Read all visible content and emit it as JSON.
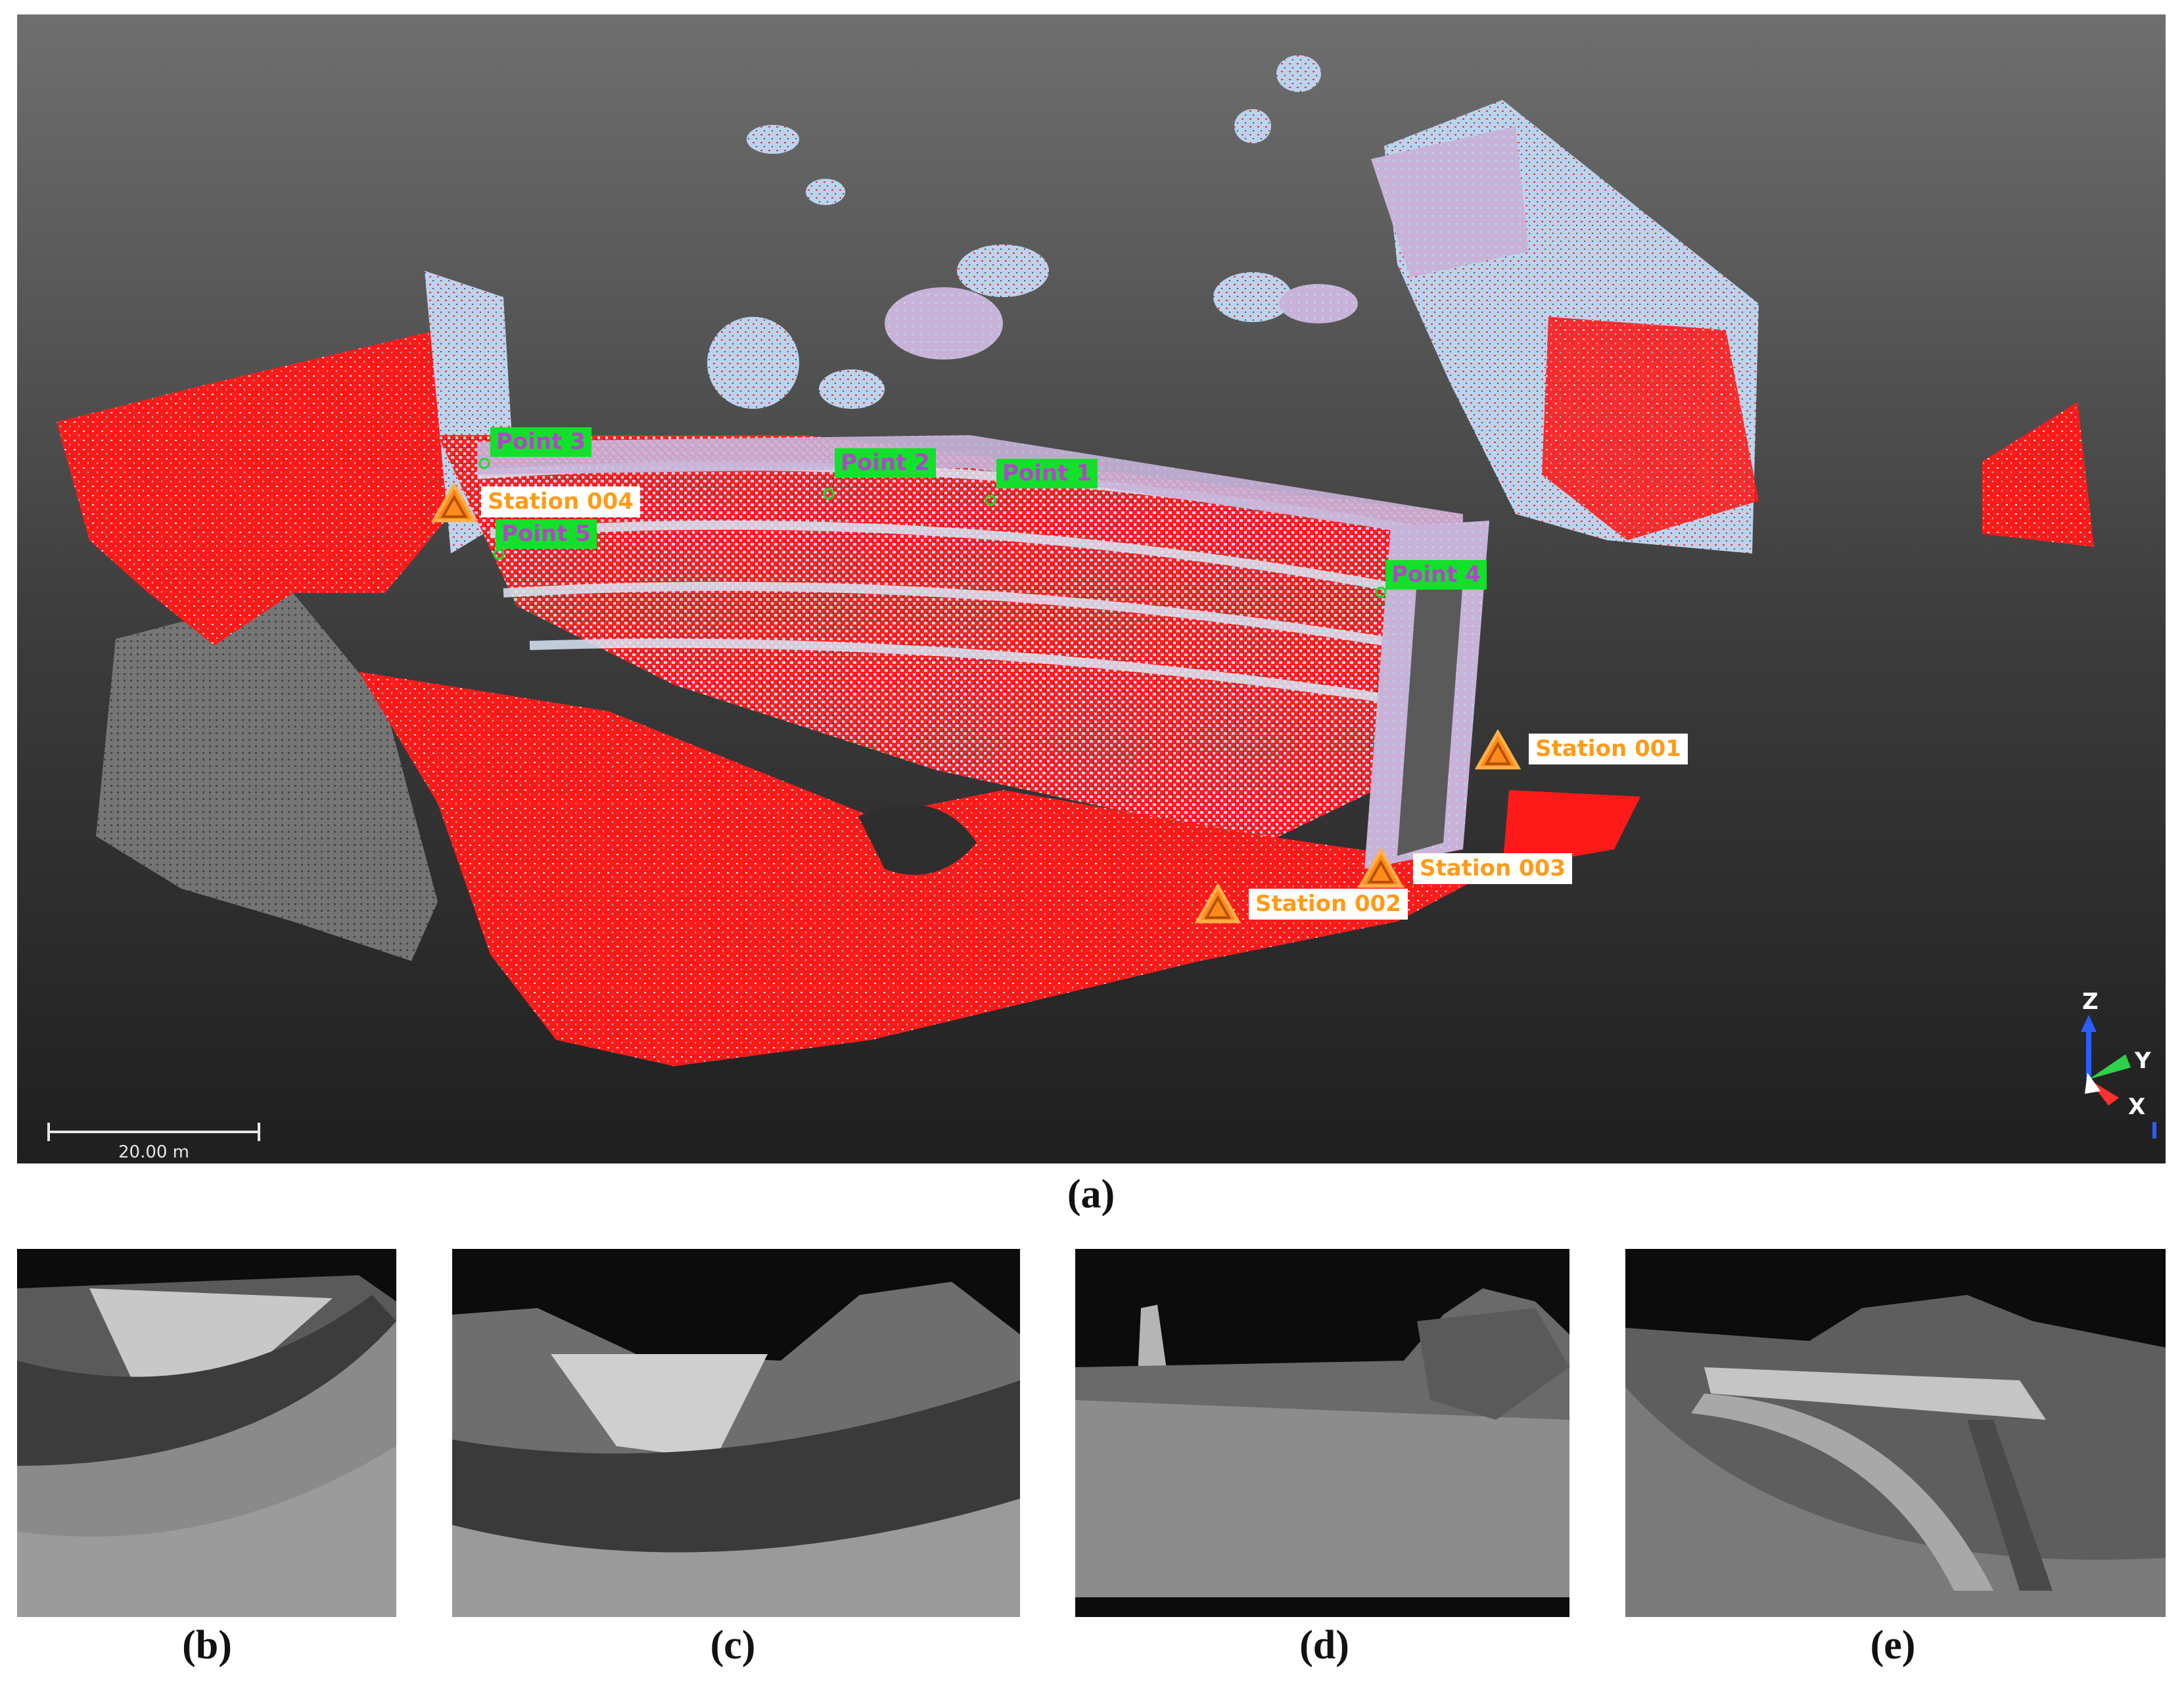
{
  "viewport": {
    "colors": {
      "cloud_red": "#ff1a1a",
      "cloud_blue": "#bcd3ee",
      "cloud_lilac": "#c9b2d8",
      "cloud_grey": "#7c7c7c",
      "station": "#ff9b1a",
      "point_tag": "#13e02a",
      "point_text": "#b046c8"
    },
    "stations": [
      {
        "id": "s004",
        "label": "Station 004"
      },
      {
        "id": "s001",
        "label": "Station 001"
      },
      {
        "id": "s003",
        "label": "Station 003"
      },
      {
        "id": "s002",
        "label": "Station 002"
      }
    ],
    "points": [
      {
        "id": "p3",
        "label": "Point 3"
      },
      {
        "id": "p2",
        "label": "Point 2"
      },
      {
        "id": "p1",
        "label": "Point 1"
      },
      {
        "id": "p5",
        "label": "Point 5"
      },
      {
        "id": "p4",
        "label": "Point 4"
      }
    ],
    "scale_bar": {
      "label": "20.00 m"
    },
    "axes": {
      "z": "Z",
      "y": "Y",
      "x": "X"
    }
  },
  "captions": {
    "a": "(a)",
    "b": "(b)",
    "c": "(c)",
    "d": "(d)",
    "e": "(e)"
  }
}
